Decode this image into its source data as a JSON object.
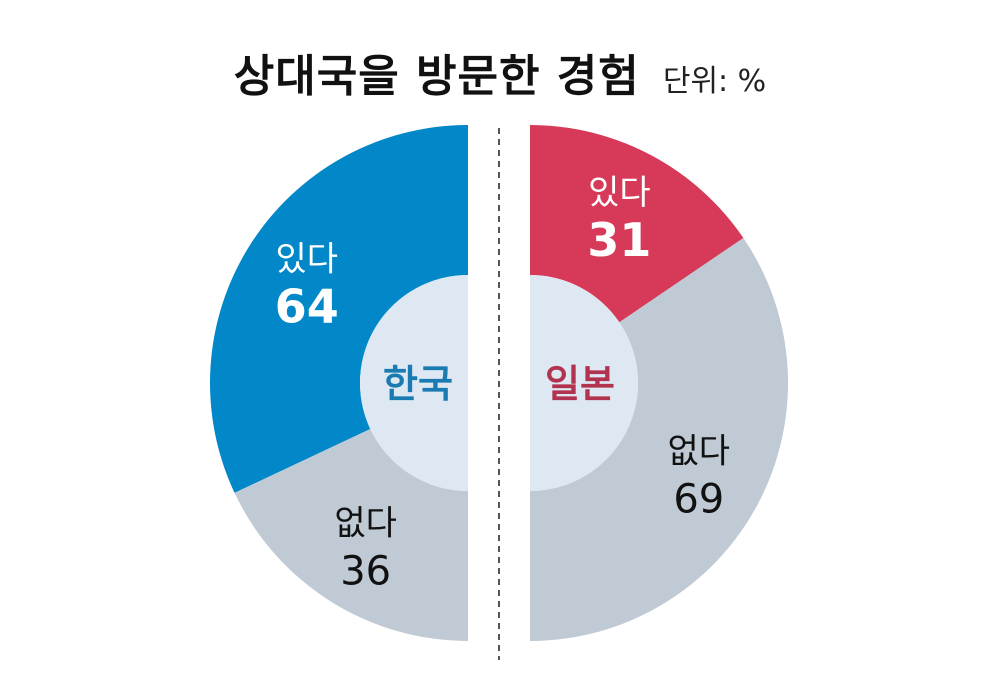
{
  "title": "상대국을 방문한 경험",
  "unit": "단위: %",
  "colors": {
    "korea_yes": "#0288c8",
    "japan_yes": "#d63a58",
    "no": "#bfcad4",
    "center": "#dde8f2",
    "korea_text": "#1a7bb3",
    "japan_text": "#b2334f",
    "divider": "#555555"
  },
  "chart_data": [
    {
      "type": "pie",
      "center_label": "한국",
      "categories": [
        "있다",
        "없다"
      ],
      "values": [
        64,
        36
      ],
      "value_labels": [
        "64",
        "36"
      ]
    },
    {
      "type": "pie",
      "center_label": "일본",
      "categories": [
        "있다",
        "없다"
      ],
      "values": [
        31,
        69
      ],
      "value_labels": [
        "31",
        "69"
      ]
    }
  ]
}
